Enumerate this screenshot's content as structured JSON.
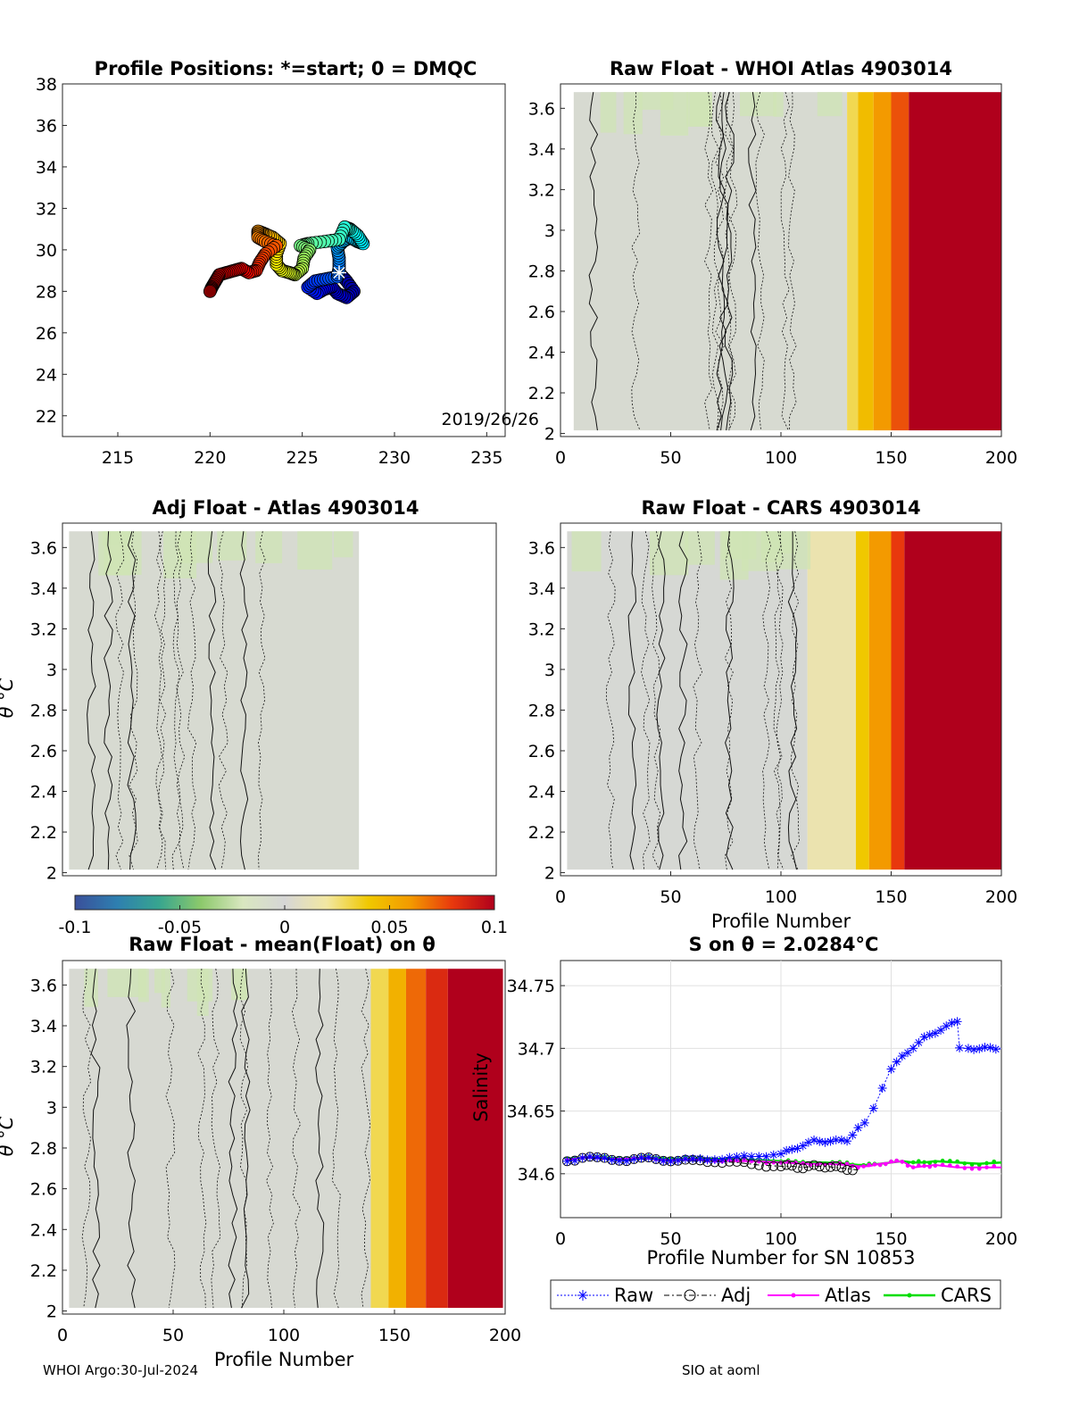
{
  "footer": {
    "left": "WHOI Argo:30-Jul-2024",
    "right": "SIO at aoml"
  },
  "colorbar": {
    "ticks": [
      "-0.1",
      "-0.05",
      "0",
      "0.05",
      "0.1"
    ],
    "colors": [
      "#3a4f9a",
      "#2e7fb0",
      "#37a58f",
      "#8cc96b",
      "#d9e7c0",
      "#d6d6d6",
      "#f2e7a2",
      "#f0c800",
      "#f39a00",
      "#e8380d",
      "#b0001c"
    ]
  },
  "panels": {
    "map": {
      "title": "Profile Positions: *=start; 0 = DMQC",
      "xticks": [
        "215",
        "220",
        "225",
        "230",
        "235"
      ],
      "yticks": [
        "22",
        "24",
        "26",
        "28",
        "30",
        "32",
        "34",
        "36",
        "38"
      ],
      "annotation": "2019/26/26"
    },
    "whoi": {
      "title": "Raw Float - WHOI Atlas  4903014",
      "xticks": [
        "0",
        "50",
        "100",
        "150",
        "200"
      ],
      "yticks": [
        "2",
        "2.2",
        "2.4",
        "2.6",
        "2.8",
        "3",
        "3.2",
        "3.4",
        "3.6"
      ]
    },
    "adj": {
      "title": "Adj Float - Atlas  4903014",
      "ylabel": "θ °C",
      "yticks": [
        "2",
        "2.2",
        "2.4",
        "2.6",
        "2.8",
        "3",
        "3.2",
        "3.4",
        "3.6"
      ]
    },
    "cars": {
      "title": "Raw Float - CARS  4903014",
      "xlabel": "Profile Number",
      "xticks": [
        "0",
        "50",
        "100",
        "150",
        "200"
      ],
      "yticks": [
        "2",
        "2.2",
        "2.4",
        "2.6",
        "2.8",
        "3",
        "3.2",
        "3.4",
        "3.6"
      ]
    },
    "mean": {
      "title": "Raw Float - mean(Float) on θ",
      "xlabel": "Profile Number",
      "ylabel": "θ °C",
      "xticks": [
        "0",
        "50",
        "100",
        "150",
        "200"
      ],
      "yticks": [
        "2",
        "2.2",
        "2.4",
        "2.6",
        "2.8",
        "3",
        "3.2",
        "3.4",
        "3.6"
      ]
    },
    "salinity": {
      "title": "S on θ = 2.0284°C",
      "xlabel": "Profile Number for SN 10853",
      "ylabel": "Salinity",
      "xticks": [
        "0",
        "50",
        "100",
        "150",
        "200"
      ],
      "yticks": [
        "34.6",
        "34.65",
        "34.7",
        "34.75"
      ],
      "legend": [
        "Raw",
        "Adj",
        "Atlas",
        "CARS"
      ]
    }
  },
  "chart_data": [
    {
      "type": "scatter",
      "title": "Profile Positions: *=start; 0 = DMQC",
      "xlim": [
        212,
        236
      ],
      "ylim": [
        21,
        38
      ],
      "annotation": "2019/26/26",
      "colormap": "jet by profile number",
      "path": [
        [
          227.0,
          28.9
        ],
        [
          227.4,
          28.5
        ],
        [
          227.8,
          28.0
        ],
        [
          227.4,
          27.7
        ],
        [
          226.9,
          27.9
        ],
        [
          226.6,
          28.2
        ],
        [
          226.2,
          28.1
        ],
        [
          225.8,
          27.9
        ],
        [
          225.3,
          28.2
        ],
        [
          225.7,
          28.5
        ],
        [
          226.3,
          28.6
        ],
        [
          226.9,
          28.7
        ],
        [
          227.0,
          29.1
        ],
        [
          227.0,
          29.6
        ],
        [
          226.9,
          30.1
        ],
        [
          227.2,
          30.4
        ],
        [
          227.6,
          30.6
        ],
        [
          228.0,
          30.4
        ],
        [
          228.3,
          30.3
        ],
        [
          228.0,
          30.7
        ],
        [
          227.6,
          31.0
        ],
        [
          227.3,
          31.1
        ],
        [
          227.0,
          30.5
        ],
        [
          226.2,
          30.4
        ],
        [
          225.3,
          30.3
        ],
        [
          224.9,
          30.2
        ],
        [
          225.4,
          30.0
        ],
        [
          225.1,
          29.6
        ],
        [
          225.0,
          29.1
        ],
        [
          224.6,
          28.8
        ],
        [
          224.3,
          28.9
        ],
        [
          223.9,
          29.0
        ],
        [
          223.6,
          29.3
        ],
        [
          223.6,
          29.8
        ],
        [
          223.8,
          30.3
        ],
        [
          223.4,
          30.6
        ],
        [
          222.9,
          30.8
        ],
        [
          222.6,
          30.9
        ],
        [
          222.6,
          30.6
        ],
        [
          223.0,
          30.4
        ],
        [
          223.6,
          30.2
        ],
        [
          223.0,
          29.8
        ],
        [
          222.7,
          29.4
        ],
        [
          222.5,
          29.0
        ],
        [
          222.1,
          28.9
        ],
        [
          221.7,
          29.1
        ],
        [
          221.3,
          29.0
        ],
        [
          220.9,
          28.9
        ],
        [
          220.5,
          28.8
        ],
        [
          220.3,
          28.5
        ],
        [
          220.1,
          28.2
        ],
        [
          220.0,
          28.0
        ]
      ]
    },
    {
      "type": "heatmap",
      "title": "Raw Float - WHOI Atlas  4903014",
      "x_range": [
        0,
        200
      ],
      "y_range": [
        2,
        3.72
      ],
      "clim": [
        -0.1,
        0.1
      ],
      "column_anomaly": [
        [
          0,
          130,
          -0.005
        ],
        [
          130,
          135,
          0.03
        ],
        [
          135,
          142,
          0.045
        ],
        [
          142,
          150,
          0.06
        ],
        [
          150,
          158,
          0.075
        ],
        [
          158,
          200,
          0.1
        ]
      ],
      "valid_profiles": [
        6,
        200
      ]
    },
    {
      "type": "heatmap",
      "title": "Adj Float - Atlas  4903014",
      "x_range": [
        0,
        200
      ],
      "y_range": [
        2,
        3.72
      ],
      "clim": [
        -0.1,
        0.1
      ],
      "column_anomaly": [
        [
          0,
          135,
          -0.005
        ]
      ],
      "valid_profiles": [
        3,
        136
      ]
    },
    {
      "type": "heatmap",
      "title": "Raw Float - CARS  4903014",
      "xlabel": "Profile Number",
      "x_range": [
        0,
        200
      ],
      "y_range": [
        2,
        3.72
      ],
      "clim": [
        -0.1,
        0.1
      ],
      "column_anomaly": [
        [
          0,
          112,
          -0.002
        ],
        [
          112,
          134,
          0.015
        ],
        [
          134,
          140,
          0.04
        ],
        [
          140,
          150,
          0.06
        ],
        [
          150,
          156,
          0.08
        ],
        [
          156,
          200,
          0.1
        ]
      ],
      "valid_profiles": [
        3,
        200
      ]
    },
    {
      "type": "heatmap",
      "title": "Raw Float - mean(Float) on θ",
      "xlabel": "Profile Number",
      "ylabel": "θ °C",
      "x_range": [
        0,
        200
      ],
      "y_range": [
        2,
        3.72
      ],
      "clim": [
        -0.1,
        0.1
      ],
      "column_anomaly": [
        [
          0,
          140,
          -0.004
        ],
        [
          140,
          148,
          0.03
        ],
        [
          148,
          156,
          0.05
        ],
        [
          156,
          165,
          0.07
        ],
        [
          165,
          175,
          0.085
        ],
        [
          175,
          200,
          0.1
        ]
      ],
      "valid_profiles": [
        3,
        200
      ]
    },
    {
      "type": "line",
      "title": "S on θ = 2.0284°C",
      "xlabel": "Profile Number for SN 10853",
      "ylabel": "Salinity",
      "xlim": [
        0,
        200
      ],
      "ylim": [
        34.565,
        34.77
      ],
      "legend_location": "bottom",
      "series": [
        {
          "name": "Raw",
          "color": "#0000ff",
          "marker": "asterisk",
          "x": [
            3,
            10,
            20,
            30,
            40,
            50,
            60,
            70,
            80,
            90,
            100,
            105,
            110,
            115,
            120,
            125,
            130,
            135,
            138,
            142,
            146,
            150,
            155,
            160,
            165,
            170,
            175,
            180,
            181,
            185,
            190,
            195,
            200
          ],
          "y": [
            34.61,
            34.613,
            34.612,
            34.611,
            34.612,
            34.611,
            34.611,
            34.612,
            34.613,
            34.614,
            34.616,
            34.619,
            34.623,
            34.626,
            34.626,
            34.626,
            34.627,
            34.636,
            34.641,
            34.652,
            34.668,
            34.684,
            34.693,
            34.701,
            34.708,
            34.713,
            34.717,
            34.722,
            34.7,
            34.7,
            34.7,
            34.7,
            34.7
          ]
        },
        {
          "name": "Adj",
          "color": "#000000",
          "marker": "circle",
          "x": [
            3,
            10,
            20,
            30,
            40,
            50,
            60,
            70,
            80,
            90,
            100,
            105,
            110,
            115,
            120,
            125,
            130,
            135
          ],
          "y": [
            34.61,
            34.613,
            34.612,
            34.611,
            34.612,
            34.611,
            34.61,
            34.61,
            34.609,
            34.607,
            34.606,
            34.606,
            34.605,
            34.606,
            34.606,
            34.605,
            34.604,
            34.603
          ]
        },
        {
          "name": "Atlas",
          "color": "#ff00ff",
          "marker": "dot",
          "x": [
            3,
            10,
            20,
            30,
            40,
            50,
            60,
            70,
            80,
            90,
            100,
            110,
            120,
            130,
            135,
            140,
            145,
            150,
            155,
            160,
            165,
            170,
            180,
            190,
            200
          ],
          "y": [
            34.611,
            34.613,
            34.612,
            34.612,
            34.612,
            34.611,
            34.611,
            34.611,
            34.61,
            34.61,
            34.609,
            34.608,
            34.608,
            34.607,
            34.606,
            34.606,
            34.608,
            34.609,
            34.61,
            34.605,
            34.606,
            34.607,
            34.605,
            34.605,
            34.605
          ]
        },
        {
          "name": "CARS",
          "color": "#00dd00",
          "marker": "dot",
          "x": [
            3,
            10,
            20,
            30,
            40,
            50,
            60,
            70,
            80,
            90,
            100,
            110,
            120,
            130,
            135,
            140,
            145,
            150,
            155,
            160,
            165,
            170,
            180,
            190,
            200
          ],
          "y": [
            34.612,
            34.613,
            34.613,
            34.612,
            34.613,
            34.612,
            34.612,
            34.612,
            34.611,
            34.611,
            34.61,
            34.609,
            34.609,
            34.608,
            34.607,
            34.607,
            34.608,
            34.609,
            34.61,
            34.609,
            34.609,
            34.61,
            34.609,
            34.608,
            34.609
          ]
        }
      ]
    }
  ]
}
